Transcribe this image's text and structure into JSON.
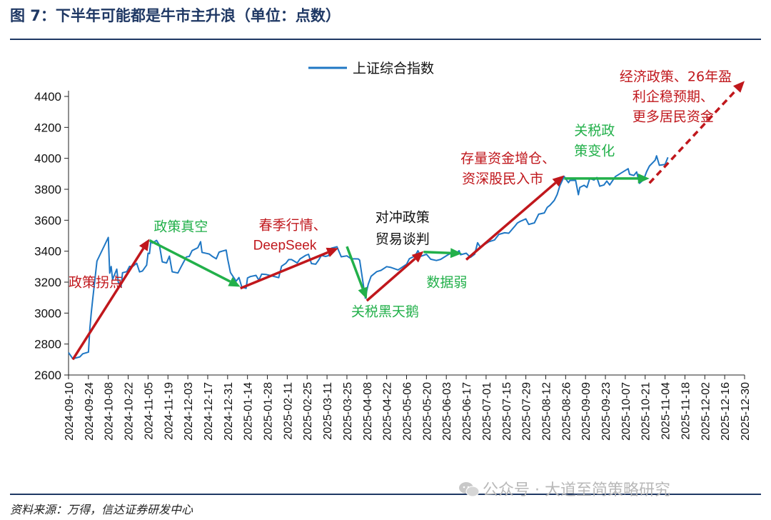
{
  "title": "图 7：下半年可能都是牛市主升浪（单位：点数）",
  "source": "资料来源：万得，信达证券研发中心",
  "watermark": "公众号 · 大道至简策略研究",
  "colors": {
    "title": "#1f3864",
    "rule": "#1f3864",
    "series": "#1f77c4",
    "red_arrow": "#c0171c",
    "green_arrow": "#22b04a",
    "red_text": "#c0171c",
    "green_text": "#22b04a",
    "axis": "#222222"
  },
  "chart_data": {
    "type": "line",
    "legend_position": "top-center",
    "grid": false,
    "ylim": [
      2600,
      4400
    ],
    "yticks": [
      2600,
      2800,
      3000,
      3200,
      3400,
      3600,
      3800,
      4000,
      4200,
      4400
    ],
    "xlim": [
      "2024-09-10",
      "2025-12-30"
    ],
    "xticks": [
      "2024-09-10",
      "2024-09-24",
      "2024-10-08",
      "2024-10-22",
      "2024-11-05",
      "2024-11-19",
      "2024-12-03",
      "2024-12-17",
      "2024-12-31",
      "2025-01-14",
      "2025-01-28",
      "2025-02-11",
      "2025-02-25",
      "2025-03-11",
      "2025-03-25",
      "2025-04-08",
      "2025-04-22",
      "2025-05-06",
      "2025-05-20",
      "2025-06-03",
      "2025-06-17",
      "2025-07-01",
      "2025-07-15",
      "2025-07-29",
      "2025-08-12",
      "2025-08-26",
      "2025-09-09",
      "2025-09-23",
      "2025-10-07",
      "2025-10-21",
      "2025-11-04",
      "2025-11-18",
      "2025-12-02",
      "2025-12-16",
      "2025-12-30"
    ],
    "series": [
      {
        "name": "上证综合指数",
        "points": [
          [
            "2024-09-10",
            2745
          ],
          [
            "2024-09-13",
            2705
          ],
          [
            "2024-09-18",
            2717
          ],
          [
            "2024-09-20",
            2737
          ],
          [
            "2024-09-24",
            2748
          ],
          [
            "2024-09-25",
            2897
          ],
          [
            "2024-09-26",
            3000
          ],
          [
            "2024-09-27",
            3087
          ],
          [
            "2024-09-30",
            3336
          ],
          [
            "2024-10-08",
            3489
          ],
          [
            "2024-10-09",
            3258
          ],
          [
            "2024-10-10",
            3301
          ],
          [
            "2024-10-11",
            3217
          ],
          [
            "2024-10-14",
            3284
          ],
          [
            "2024-10-15",
            3201
          ],
          [
            "2024-10-17",
            3169
          ],
          [
            "2024-10-18",
            3261
          ],
          [
            "2024-10-21",
            3268
          ],
          [
            "2024-10-23",
            3302
          ],
          [
            "2024-10-25",
            3300
          ],
          [
            "2024-10-28",
            3322
          ],
          [
            "2024-10-30",
            3266
          ],
          [
            "2024-11-01",
            3272
          ],
          [
            "2024-11-04",
            3310
          ],
          [
            "2024-11-05",
            3387
          ],
          [
            "2024-11-06",
            3384
          ],
          [
            "2024-11-07",
            3470
          ],
          [
            "2024-11-08",
            3452
          ],
          [
            "2024-11-11",
            3470
          ],
          [
            "2024-11-13",
            3439
          ],
          [
            "2024-11-15",
            3331
          ],
          [
            "2024-11-18",
            3324
          ],
          [
            "2024-11-20",
            3368
          ],
          [
            "2024-11-22",
            3267
          ],
          [
            "2024-11-26",
            3259
          ],
          [
            "2024-11-28",
            3295
          ],
          [
            "2024-12-02",
            3363
          ],
          [
            "2024-12-04",
            3366
          ],
          [
            "2024-12-06",
            3404
          ],
          [
            "2024-12-10",
            3422
          ],
          [
            "2024-12-12",
            3461
          ],
          [
            "2024-12-13",
            3392
          ],
          [
            "2024-12-16",
            3386
          ],
          [
            "2024-12-18",
            3382
          ],
          [
            "2024-12-20",
            3368
          ],
          [
            "2024-12-23",
            3351
          ],
          [
            "2024-12-25",
            3394
          ],
          [
            "2024-12-27",
            3400
          ],
          [
            "2024-12-30",
            3407
          ],
          [
            "2024-12-31",
            3352
          ],
          [
            "2025-01-02",
            3262
          ],
          [
            "2025-01-06",
            3206
          ],
          [
            "2025-01-08",
            3230
          ],
          [
            "2025-01-10",
            3168
          ],
          [
            "2025-01-13",
            3160
          ],
          [
            "2025-01-14",
            3227
          ],
          [
            "2025-01-16",
            3236
          ],
          [
            "2025-01-20",
            3244
          ],
          [
            "2025-01-22",
            3213
          ],
          [
            "2025-01-24",
            3252
          ],
          [
            "2025-01-27",
            3250
          ],
          [
            "2025-02-05",
            3229
          ],
          [
            "2025-02-07",
            3303
          ],
          [
            "2025-02-10",
            3322
          ],
          [
            "2025-02-12",
            3346
          ],
          [
            "2025-02-14",
            3346
          ],
          [
            "2025-02-18",
            3324
          ],
          [
            "2025-02-20",
            3350
          ],
          [
            "2025-02-24",
            3373
          ],
          [
            "2025-02-26",
            3380
          ],
          [
            "2025-02-28",
            3320
          ],
          [
            "2025-03-03",
            3316
          ],
          [
            "2025-03-05",
            3341
          ],
          [
            "2025-03-07",
            3372
          ],
          [
            "2025-03-10",
            3366
          ],
          [
            "2025-03-12",
            3371
          ],
          [
            "2025-03-14",
            3419
          ],
          [
            "2025-03-17",
            3426
          ],
          [
            "2025-03-18",
            3429
          ],
          [
            "2025-03-21",
            3364
          ],
          [
            "2025-03-25",
            3370
          ],
          [
            "2025-03-28",
            3351
          ],
          [
            "2025-04-02",
            3350
          ],
          [
            "2025-04-03",
            3342
          ],
          [
            "2025-04-07",
            3096
          ],
          [
            "2025-04-08",
            3145
          ],
          [
            "2025-04-09",
            3186
          ],
          [
            "2025-04-11",
            3238
          ],
          [
            "2025-04-15",
            3268
          ],
          [
            "2025-04-18",
            3276
          ],
          [
            "2025-04-22",
            3300
          ],
          [
            "2025-04-25",
            3295
          ],
          [
            "2025-04-30",
            3279
          ],
          [
            "2025-05-06",
            3316
          ],
          [
            "2025-05-08",
            3352
          ],
          [
            "2025-05-12",
            3369
          ],
          [
            "2025-05-14",
            3403
          ],
          [
            "2025-05-16",
            3367
          ],
          [
            "2025-05-20",
            3380
          ],
          [
            "2025-05-23",
            3348
          ],
          [
            "2025-05-27",
            3340
          ],
          [
            "2025-05-30",
            3347
          ],
          [
            "2025-06-04",
            3376
          ],
          [
            "2025-06-06",
            3385
          ],
          [
            "2025-06-10",
            3385
          ],
          [
            "2025-06-12",
            3403
          ],
          [
            "2025-06-13",
            3377
          ],
          [
            "2025-06-17",
            3387
          ],
          [
            "2025-06-20",
            3360
          ],
          [
            "2025-06-23",
            3381
          ],
          [
            "2025-06-25",
            3455
          ],
          [
            "2025-06-27",
            3424
          ],
          [
            "2025-06-30",
            3444
          ],
          [
            "2025-07-03",
            3461
          ],
          [
            "2025-07-07",
            3473
          ],
          [
            "2025-07-10",
            3509
          ],
          [
            "2025-07-14",
            3519
          ],
          [
            "2025-07-17",
            3516
          ],
          [
            "2025-07-21",
            3559
          ],
          [
            "2025-07-23",
            3582
          ],
          [
            "2025-07-25",
            3593
          ],
          [
            "2025-07-29",
            3609
          ],
          [
            "2025-07-31",
            3573
          ],
          [
            "2025-08-04",
            3583
          ],
          [
            "2025-08-07",
            3639
          ],
          [
            "2025-08-11",
            3647
          ],
          [
            "2025-08-13",
            3683
          ],
          [
            "2025-08-15",
            3697
          ],
          [
            "2025-08-18",
            3728
          ],
          [
            "2025-08-20",
            3766
          ],
          [
            "2025-08-22",
            3825
          ],
          [
            "2025-08-25",
            3883
          ],
          [
            "2025-08-26",
            3868
          ],
          [
            "2025-08-28",
            3843
          ],
          [
            "2025-08-29",
            3857
          ],
          [
            "2025-09-02",
            3858
          ],
          [
            "2025-09-04",
            3765
          ],
          [
            "2025-09-05",
            3812
          ],
          [
            "2025-09-08",
            3826
          ],
          [
            "2025-09-10",
            3812
          ],
          [
            "2025-09-12",
            3870
          ],
          [
            "2025-09-15",
            3860
          ],
          [
            "2025-09-17",
            3876
          ],
          [
            "2025-09-19",
            3820
          ],
          [
            "2025-09-22",
            3828
          ],
          [
            "2025-09-24",
            3853
          ],
          [
            "2025-09-26",
            3828
          ],
          [
            "2025-09-30",
            3882
          ],
          [
            "2025-10-09",
            3933
          ],
          [
            "2025-10-10",
            3897
          ],
          [
            "2025-10-13",
            3889
          ],
          [
            "2025-10-15",
            3912
          ],
          [
            "2025-10-17",
            3839
          ],
          [
            "2025-10-20",
            3863
          ],
          [
            "2025-10-22",
            3913
          ],
          [
            "2025-10-24",
            3950
          ],
          [
            "2025-10-28",
            3988
          ],
          [
            "2025-10-29",
            4016
          ],
          [
            "2025-10-31",
            3955
          ],
          [
            "2025-11-04",
            3960
          ],
          [
            "2025-11-06",
            4007
          ]
        ]
      }
    ],
    "arrows": [
      {
        "id": "arrow-red-1",
        "color": "red",
        "from": [
          "2024-09-13",
          2700
        ],
        "to": [
          "2024-11-06",
          3480
        ]
      },
      {
        "id": "arrow-green-1",
        "color": "green",
        "from": [
          "2024-11-06",
          3470
        ],
        "to": [
          "2025-01-09",
          3170
        ]
      },
      {
        "id": "arrow-red-2",
        "color": "red",
        "from": [
          "2025-01-09",
          3160
        ],
        "to": [
          "2025-03-19",
          3420
        ]
      },
      {
        "id": "arrow-green-2",
        "color": "green",
        "from": [
          "2025-03-25",
          3430
        ],
        "to": [
          "2025-04-08",
          3090
        ]
      },
      {
        "id": "arrow-red-3",
        "color": "red",
        "from": [
          "2025-04-08",
          3080
        ],
        "to": [
          "2025-05-18",
          3400
        ]
      },
      {
        "id": "arrow-green-3",
        "color": "green",
        "from": [
          "2025-05-18",
          3395
        ],
        "to": [
          "2025-06-14",
          3385
        ]
      },
      {
        "id": "arrow-red-4",
        "color": "red",
        "from": [
          "2025-06-17",
          3345
        ],
        "to": [
          "2025-08-25",
          3890
        ]
      },
      {
        "id": "arrow-green-4",
        "color": "green",
        "from": [
          "2025-08-25",
          3870
        ],
        "to": [
          "2025-10-24",
          3870
        ]
      },
      {
        "id": "arrow-red-5",
        "color": "red",
        "from": [
          "2025-10-24",
          3840
        ],
        "to": [
          "2025-12-30",
          4500
        ],
        "dashed": true
      }
    ],
    "annotations": [
      {
        "text": "政策拐点",
        "color": "red",
        "at": [
          "2024-09-10",
          3170
        ]
      },
      {
        "text": "政策真空",
        "color": "green",
        "at": [
          "2024-11-09",
          3530
        ]
      },
      {
        "text": "春季行情、",
        "color": "red",
        "at": [
          "2025-01-22",
          3540
        ]
      },
      {
        "text": "DeepSeek",
        "color": "red",
        "at": [
          "2025-01-18",
          3410
        ],
        "font": "sans"
      },
      {
        "text": "关税黑天鹅",
        "color": "green",
        "at": [
          "2025-03-28",
          2980
        ]
      },
      {
        "text": "对冲政策",
        "color": "black",
        "at": [
          "2025-04-14",
          3590
        ]
      },
      {
        "text": "贸易谈判",
        "color": "black",
        "at": [
          "2025-04-14",
          3450
        ]
      },
      {
        "text": "数据弱",
        "color": "green",
        "at": [
          "2025-05-20",
          3170
        ]
      },
      {
        "text": "存量资金增仓、",
        "color": "red",
        "at": [
          "2025-06-13",
          3970
        ]
      },
      {
        "text": "资深股民入市",
        "color": "red",
        "at": [
          "2025-06-14",
          3840
        ]
      },
      {
        "text": "关税政",
        "color": "green",
        "at": [
          "2025-09-01",
          4150
        ]
      },
      {
        "text": "策变化",
        "color": "green",
        "at": [
          "2025-09-01",
          4020
        ]
      },
      {
        "text": "经济政策、26年盈",
        "color": "red",
        "at": [
          "2025-10-03",
          4500
        ]
      },
      {
        "text": "利企稳预期、",
        "color": "red",
        "at": [
          "2025-10-12",
          4370
        ]
      },
      {
        "text": "更多居民资金",
        "color": "red",
        "at": [
          "2025-10-12",
          4240
        ]
      }
    ]
  }
}
